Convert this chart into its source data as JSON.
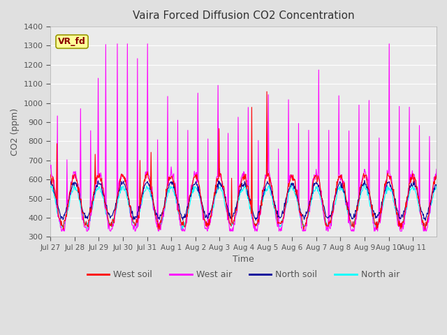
{
  "title": "Vaira Forced Diffusion CO2 Concentration",
  "xlabel": "Time",
  "ylabel": "CO2 (ppm)",
  "ylim": [
    300,
    1400
  ],
  "yticks": [
    300,
    400,
    500,
    600,
    700,
    800,
    900,
    1000,
    1100,
    1200,
    1300,
    1400
  ],
  "label_tag": "VR_fd",
  "xtick_labels": [
    "Jul 27",
    "Jul 28",
    "Jul 29",
    "Jul 30",
    "Jul 31",
    "Aug 1",
    "Aug 2",
    "Aug 3",
    "Aug 4",
    "Aug 5",
    "Aug 6",
    "Aug 7",
    "Aug 8",
    "Aug 9",
    "Aug 10",
    "Aug 11"
  ],
  "n_days": 16,
  "pts_per_day": 48,
  "series_colors": {
    "west_soil": "#ff0000",
    "west_air": "#ff00ff",
    "north_soil": "#000099",
    "north_air": "#00ffff"
  },
  "legend_labels": [
    "West soil",
    "West air",
    "North soil",
    "North air"
  ],
  "bg_color": "#e0e0e0",
  "plot_bg": "#ebebeb"
}
